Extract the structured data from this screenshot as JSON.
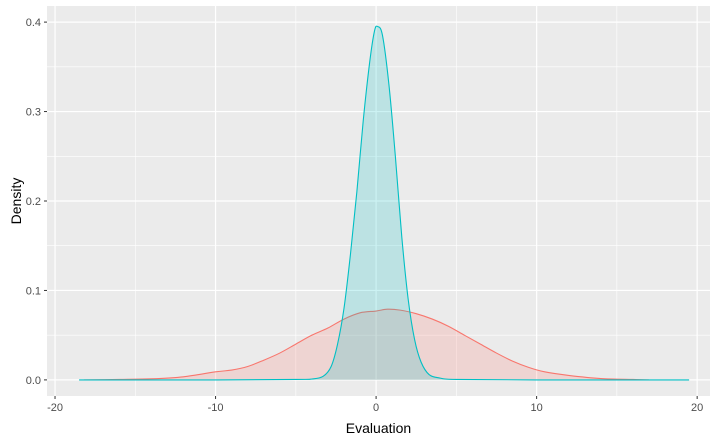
{
  "chart_data": {
    "type": "area",
    "title": "",
    "xlabel": "Evaluation",
    "ylabel": "Density",
    "xlim": [
      -20.5,
      20.8
    ],
    "ylim": [
      -0.018,
      0.418
    ],
    "x_ticks": [
      -20,
      -10,
      0,
      10,
      20
    ],
    "x_tick_labels": [
      "-20",
      "-10",
      "0",
      "10",
      "20"
    ],
    "y_ticks": [
      0.0,
      0.1,
      0.2,
      0.3,
      0.4
    ],
    "y_tick_labels": [
      "0.0",
      "0.1",
      "0.2",
      "0.3",
      "0.4"
    ],
    "grid": true,
    "legend": "none",
    "series": [
      {
        "color": "#F8766D",
        "fill": "#F8766D",
        "points": [
          [
            -18.2,
            0.0
          ],
          [
            -16,
            0.0005
          ],
          [
            -14,
            0.0012
          ],
          [
            -12,
            0.0035
          ],
          [
            -10,
            0.009
          ],
          [
            -9,
            0.011
          ],
          [
            -8,
            0.015
          ],
          [
            -7,
            0.022
          ],
          [
            -6,
            0.03
          ],
          [
            -5,
            0.04
          ],
          [
            -4,
            0.05
          ],
          [
            -3,
            0.058
          ],
          [
            -2,
            0.068
          ],
          [
            -1,
            0.075
          ],
          [
            0,
            0.077
          ],
          [
            0.7,
            0.079
          ],
          [
            1.5,
            0.078
          ],
          [
            2.5,
            0.074
          ],
          [
            3.5,
            0.068
          ],
          [
            4.5,
            0.06
          ],
          [
            5.5,
            0.05
          ],
          [
            6.5,
            0.04
          ],
          [
            7.5,
            0.03
          ],
          [
            8.5,
            0.021
          ],
          [
            9.5,
            0.014
          ],
          [
            10.5,
            0.009
          ],
          [
            12,
            0.005
          ],
          [
            14,
            0.0015
          ],
          [
            16,
            0.0005
          ],
          [
            17,
            0.0
          ]
        ]
      },
      {
        "color": "#00BFC4",
        "fill": "#00BFC4",
        "points": [
          [
            -18.5,
            0.0
          ],
          [
            -10,
            0.0
          ],
          [
            -5,
            0.0005
          ],
          [
            -4,
            0.001
          ],
          [
            -3.3,
            0.004
          ],
          [
            -2.8,
            0.015
          ],
          [
            -2.4,
            0.04
          ],
          [
            -2.0,
            0.08
          ],
          [
            -1.6,
            0.14
          ],
          [
            -1.2,
            0.21
          ],
          [
            -0.8,
            0.29
          ],
          [
            -0.4,
            0.355
          ],
          [
            -0.1,
            0.39
          ],
          [
            0.1,
            0.395
          ],
          [
            0.4,
            0.385
          ],
          [
            0.8,
            0.33
          ],
          [
            1.2,
            0.25
          ],
          [
            1.6,
            0.16
          ],
          [
            2.0,
            0.09
          ],
          [
            2.4,
            0.045
          ],
          [
            2.8,
            0.02
          ],
          [
            3.3,
            0.006
          ],
          [
            4,
            0.002
          ],
          [
            5,
            0.0005
          ],
          [
            10,
            0.0
          ],
          [
            19.5,
            0.0
          ]
        ]
      }
    ]
  }
}
